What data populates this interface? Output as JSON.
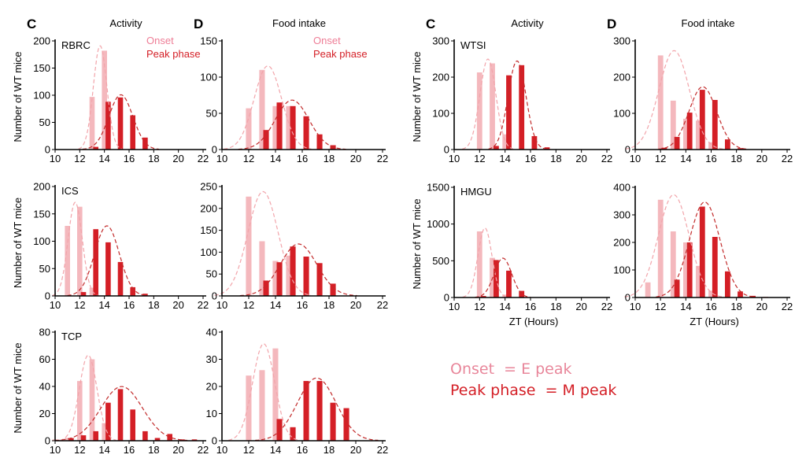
{
  "colors": {
    "onset": "#f4b8bd",
    "peak": "#d41f26",
    "onset_text": "#ee7d96",
    "peak_text": "#d41f26",
    "onset_curve": "#f2a4aa",
    "peak_curve": "#c22a2a"
  },
  "legend": {
    "onset": "Onset",
    "peak": "Peak phase"
  },
  "notes": {
    "onset": "Onset  = E peak",
    "peak": "Peak phase  = M peak"
  },
  "chart_data": [
    {
      "type": "bar",
      "panel": "C",
      "title": "Activity",
      "site": "RBRC",
      "ylabel": "Number of WT mice",
      "xlabel": "",
      "xlim": [
        10,
        22
      ],
      "xticks": [
        10,
        12,
        14,
        16,
        18,
        20,
        22
      ],
      "ylim": [
        0,
        200
      ],
      "yticks": [
        0,
        50,
        100,
        150,
        200
      ],
      "legend": true,
      "series": [
        {
          "name": "Onset",
          "x": [
            13,
            14
          ],
          "values": [
            97,
            182
          ]
        },
        {
          "name": "Peak phase",
          "x": [
            13.3,
            14.3,
            15.3,
            16.3,
            17.3
          ],
          "values": [
            5,
            88,
            96,
            63,
            22
          ]
        }
      ]
    },
    {
      "type": "bar",
      "panel": "D",
      "title": "Food intake",
      "site": "",
      "ylabel": "",
      "xlabel": "",
      "xlim": [
        10,
        22
      ],
      "xticks": [
        10,
        12,
        14,
        16,
        18,
        20,
        22
      ],
      "ylim": [
        0,
        150
      ],
      "yticks": [
        0,
        50,
        100,
        150
      ],
      "legend": true,
      "series": [
        {
          "name": "Onset",
          "x": [
            12,
            13,
            14,
            15
          ],
          "values": [
            57,
            110,
            60,
            60
          ]
        },
        {
          "name": "Peak phase",
          "x": [
            13.3,
            14.3,
            15.3,
            16.3,
            17.3,
            18.3
          ],
          "values": [
            27,
            65,
            60,
            46,
            21,
            6
          ]
        }
      ]
    },
    {
      "type": "bar",
      "panel": "",
      "title": "",
      "site": "ICS",
      "ylabel": "Number of WT mice",
      "xlabel": "",
      "xlim": [
        10,
        22
      ],
      "xticks": [
        10,
        12,
        14,
        16,
        18,
        20,
        22
      ],
      "ylim": [
        0,
        200
      ],
      "yticks": [
        0,
        50,
        100,
        150,
        200
      ],
      "legend": false,
      "series": [
        {
          "name": "Onset",
          "x": [
            11,
            12,
            13
          ],
          "values": [
            128,
            163,
            15
          ]
        },
        {
          "name": "Peak phase",
          "x": [
            12.3,
            13.3,
            14.3,
            15.3,
            16.3,
            17.3
          ],
          "values": [
            7,
            122,
            98,
            62,
            16,
            4
          ]
        }
      ]
    },
    {
      "type": "bar",
      "panel": "",
      "title": "",
      "site": "",
      "ylabel": "",
      "xlabel": "",
      "xlim": [
        10,
        22
      ],
      "xticks": [
        10,
        12,
        14,
        16,
        18,
        20,
        22
      ],
      "ylim": [
        0,
        250
      ],
      "yticks": [
        0,
        50,
        100,
        150,
        200,
        250
      ],
      "legend": false,
      "series": [
        {
          "name": "Onset",
          "x": [
            12,
            13,
            14,
            15
          ],
          "values": [
            227,
            125,
            80,
            92
          ]
        },
        {
          "name": "Peak phase",
          "x": [
            13.3,
            14.3,
            15.3,
            16.3,
            17.3,
            18.3
          ],
          "values": [
            35,
            77,
            113,
            90,
            75,
            28
          ]
        }
      ]
    },
    {
      "type": "bar",
      "panel": "",
      "title": "",
      "site": "TCP",
      "ylabel": "Number of WT mice",
      "xlabel": "",
      "xlim": [
        10,
        22
      ],
      "xticks": [
        10,
        12,
        14,
        16,
        18,
        20,
        22
      ],
      "ylim": [
        0,
        80
      ],
      "yticks": [
        0,
        20,
        40,
        60,
        80
      ],
      "legend": false,
      "series": [
        {
          "name": "Onset",
          "x": [
            10,
            11,
            12,
            13,
            14
          ],
          "values": [
            1,
            2,
            44,
            60,
            13
          ]
        },
        {
          "name": "Peak phase",
          "x": [
            11.3,
            12.3,
            13.3,
            14.3,
            15.3,
            16.3,
            17.3,
            18.3,
            19.3,
            20.3,
            21.3
          ],
          "values": [
            2,
            4,
            7,
            28,
            38,
            23,
            7,
            2,
            5,
            1,
            1
          ]
        }
      ]
    },
    {
      "type": "bar",
      "panel": "",
      "title": "",
      "site": "",
      "ylabel": "",
      "xlabel": "",
      "xlim": [
        10,
        22
      ],
      "xticks": [
        10,
        12,
        14,
        16,
        18,
        20,
        22
      ],
      "ylim": [
        0,
        40
      ],
      "yticks": [
        0,
        10,
        20,
        30,
        40
      ],
      "legend": false,
      "series": [
        {
          "name": "Onset",
          "x": [
            12,
            13,
            14
          ],
          "values": [
            24,
            26,
            34
          ]
        },
        {
          "name": "Peak phase",
          "x": [
            14.3,
            15.3,
            16.3,
            17.3,
            18.3,
            19.3
          ],
          "values": [
            8,
            5,
            22,
            22,
            14,
            12
          ]
        }
      ]
    },
    {
      "type": "bar",
      "panel": "C",
      "title": "Activity",
      "site": "WTSI",
      "ylabel": "Number of WT mice",
      "xlabel": "",
      "xlim": [
        10,
        22
      ],
      "xticks": [
        10,
        12,
        14,
        16,
        18,
        20,
        22
      ],
      "ylim": [
        0,
        300
      ],
      "yticks": [
        0,
        100,
        200,
        300
      ],
      "legend": false,
      "series": [
        {
          "name": "Onset",
          "x": [
            12,
            13,
            14
          ],
          "values": [
            213,
            238,
            42
          ]
        },
        {
          "name": "Peak phase",
          "x": [
            13.3,
            14.3,
            15.3,
            16.3,
            17.3
          ],
          "values": [
            10,
            205,
            233,
            37,
            6
          ]
        }
      ]
    },
    {
      "type": "bar",
      "panel": "D",
      "title": "Food intake",
      "site": "",
      "ylabel": "",
      "xlabel": "",
      "xlim": [
        10,
        22
      ],
      "xticks": [
        10,
        12,
        14,
        16,
        18,
        20,
        22
      ],
      "ylim": [
        0,
        300
      ],
      "yticks": [
        0,
        100,
        200,
        300
      ],
      "legend": false,
      "series": [
        {
          "name": "Onset",
          "x": [
            12,
            13,
            14,
            15,
            16
          ],
          "values": [
            260,
            135,
            85,
            80,
            20
          ]
        },
        {
          "name": "Peak phase",
          "x": [
            12.3,
            13.3,
            14.3,
            15.3,
            16.3,
            17.3,
            18.3
          ],
          "values": [
            5,
            35,
            102,
            165,
            137,
            28,
            4
          ]
        }
      ]
    },
    {
      "type": "bar",
      "panel": "",
      "title": "",
      "site": "HMGU",
      "ylabel": "Number of WT mice",
      "xlabel": "ZT (Hours)",
      "xlim": [
        10,
        22
      ],
      "xticks": [
        10,
        12,
        14,
        16,
        18,
        20,
        22
      ],
      "ylim": [
        0,
        1500
      ],
      "yticks": [
        0,
        500,
        1000,
        1500
      ],
      "legend": false,
      "series": [
        {
          "name": "Onset",
          "x": [
            12,
            13,
            14
          ],
          "values": [
            900,
            540,
            40
          ]
        },
        {
          "name": "Peak phase",
          "x": [
            12.3,
            13.3,
            14.3,
            15.3
          ],
          "values": [
            20,
            510,
            365,
            90
          ]
        }
      ]
    },
    {
      "type": "bar",
      "panel": "",
      "title": "",
      "site": "",
      "ylabel": "",
      "xlabel": "ZT (Hours)",
      "xlim": [
        10,
        22
      ],
      "xticks": [
        10,
        12,
        14,
        16,
        18,
        20,
        22
      ],
      "ylim": [
        0,
        400
      ],
      "yticks": [
        0,
        100,
        200,
        300,
        400
      ],
      "legend": false,
      "series": [
        {
          "name": "Onset",
          "x": [
            11,
            12,
            13,
            14,
            15,
            16
          ],
          "values": [
            55,
            355,
            240,
            200,
            115,
            25
          ]
        },
        {
          "name": "Peak phase",
          "x": [
            13.3,
            14.3,
            15.3,
            16.3,
            17.3,
            18.3,
            19.3,
            20.3
          ],
          "values": [
            65,
            200,
            330,
            220,
            95,
            22,
            6,
            2
          ]
        }
      ]
    }
  ]
}
